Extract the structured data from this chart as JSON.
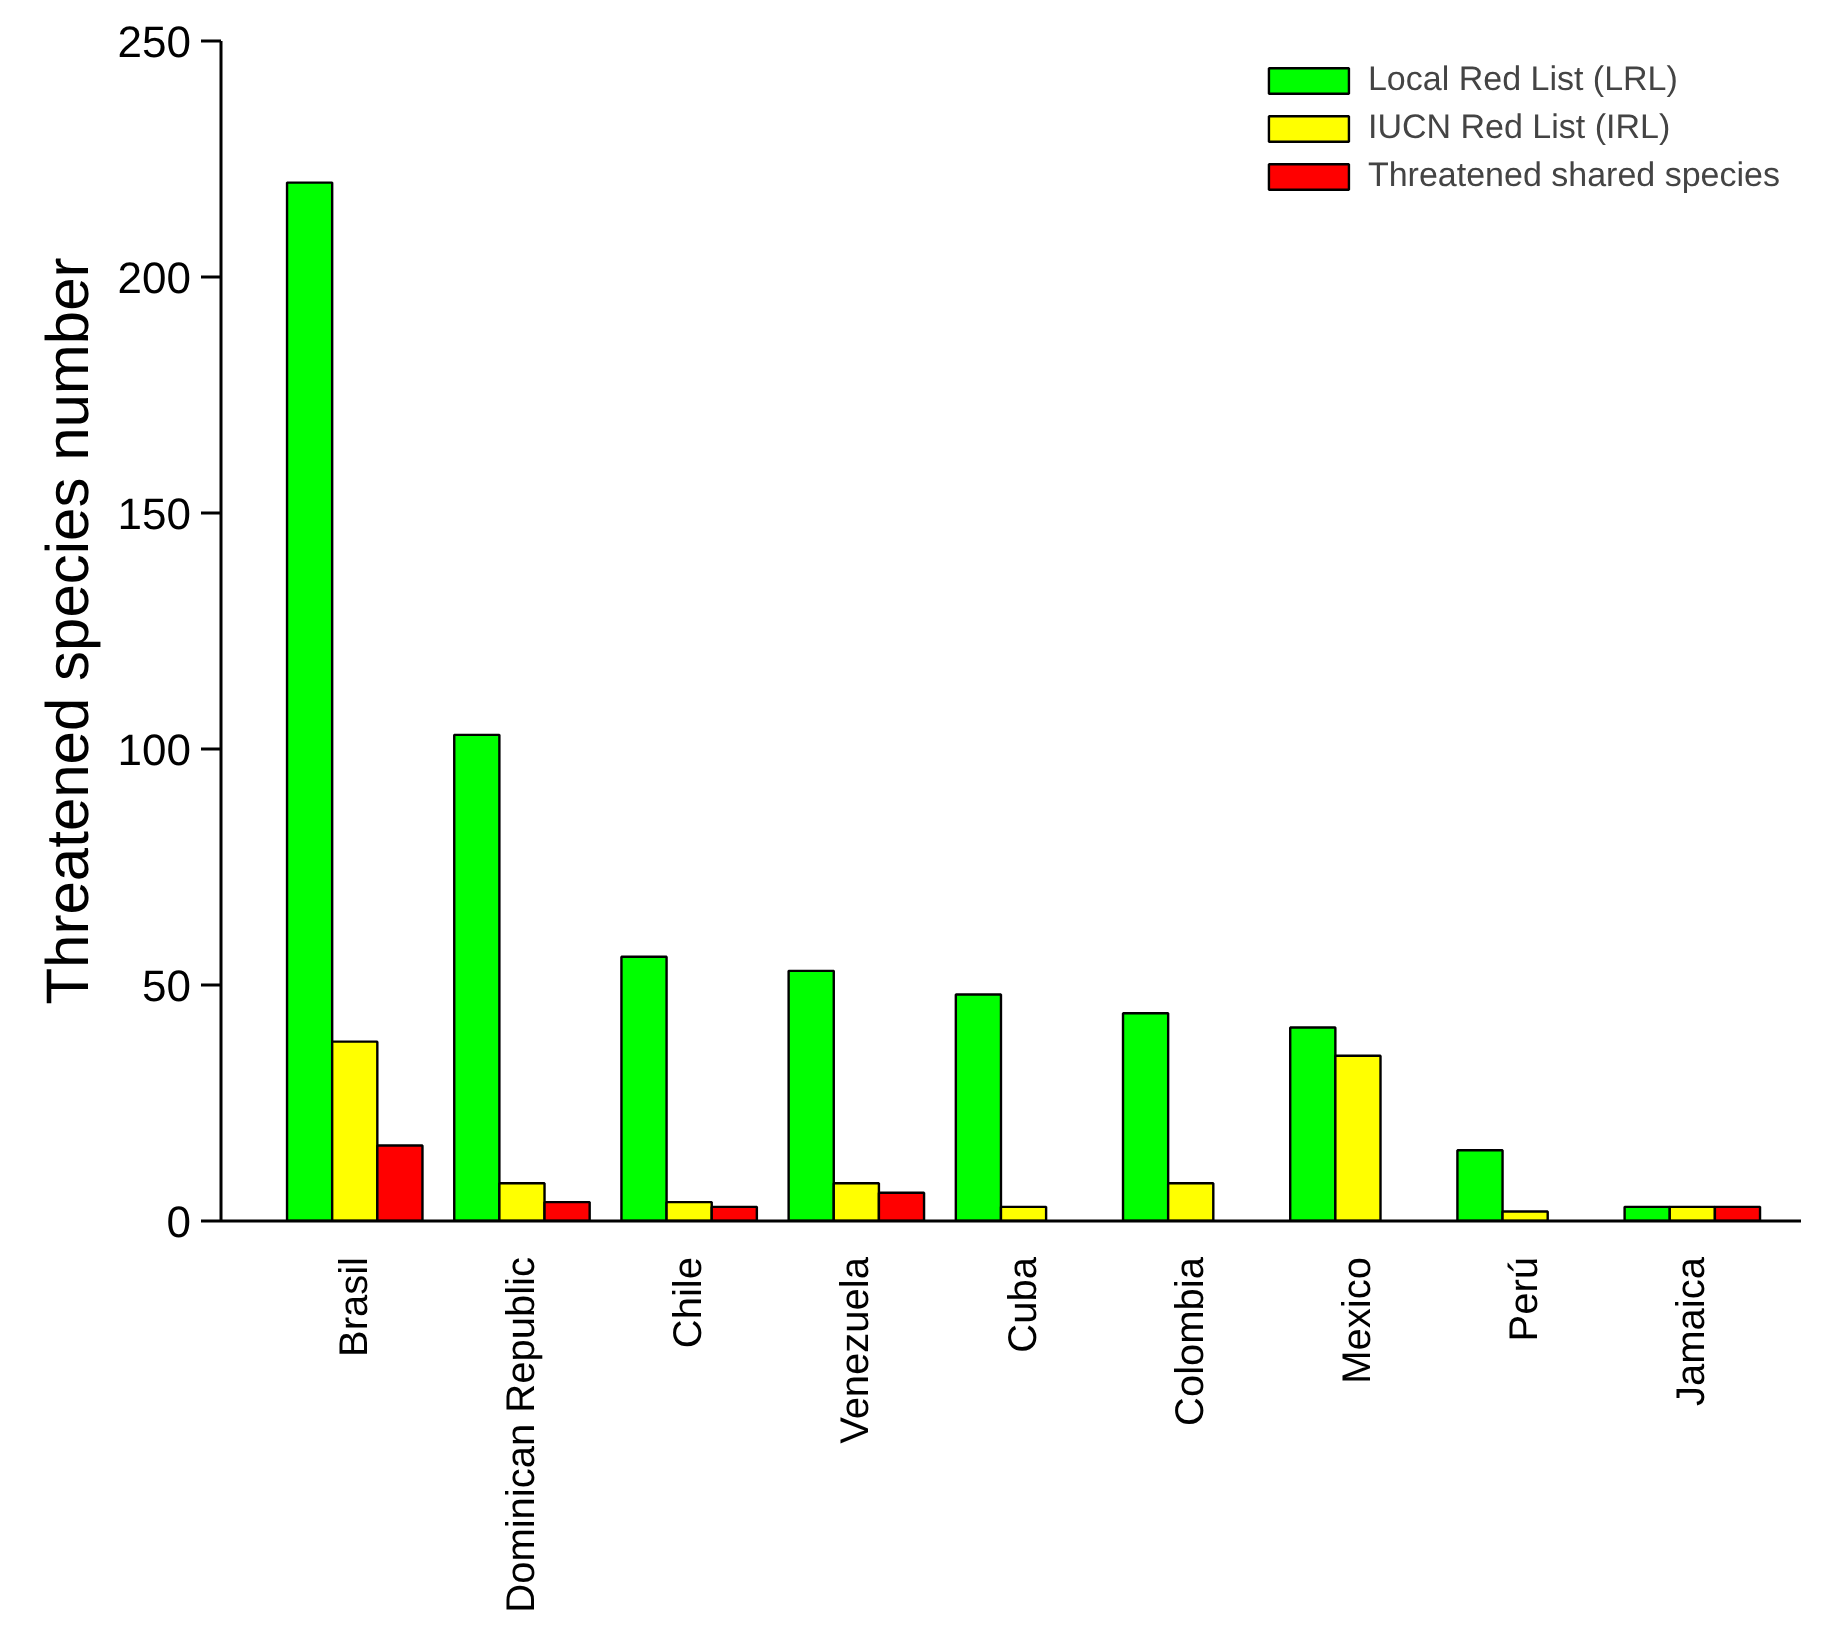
{
  "chart_data": {
    "type": "bar",
    "ylabel": "Threatened species number",
    "categories": [
      "Brasil",
      "Dominican Republic",
      "Chile",
      "Venezuela",
      "Cuba",
      "Colombia",
      "Mexico",
      "Perú",
      "Jamaica"
    ],
    "series": [
      {
        "name": "Local Red List (LRL)",
        "color": "#00ff00",
        "values": [
          220,
          103,
          56,
          53,
          48,
          44,
          41,
          15,
          3
        ]
      },
      {
        "name": "IUCN Red List (IRL)",
        "color": "#ffff00",
        "values": [
          38,
          8,
          4,
          8,
          3,
          8,
          35,
          2,
          3
        ]
      },
      {
        "name": "Threatened shared species",
        "color": "#ff0000",
        "values": [
          16,
          4,
          3,
          6,
          null,
          null,
          null,
          null,
          3
        ]
      }
    ],
    "ylim": [
      0,
      250
    ],
    "yticks": [
      0,
      50,
      100,
      150,
      200,
      250
    ],
    "grid": false,
    "legend": "top right"
  }
}
